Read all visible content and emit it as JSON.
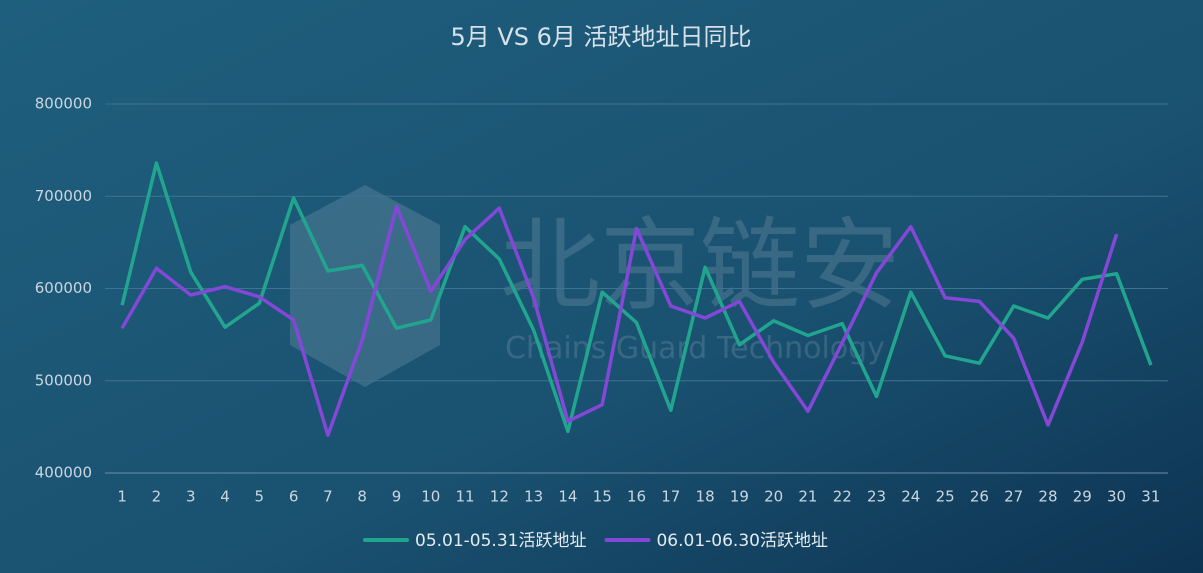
{
  "chart_data": {
    "type": "line",
    "title": "5月 VS 6月 活跃地址日同比",
    "watermark": {
      "text": "北京链安",
      "subtext": "Chains Guard Technology"
    },
    "categories": [
      1,
      2,
      3,
      4,
      5,
      6,
      7,
      8,
      9,
      10,
      11,
      12,
      13,
      14,
      15,
      16,
      17,
      18,
      19,
      20,
      21,
      22,
      23,
      24,
      25,
      26,
      27,
      28,
      29,
      30,
      31
    ],
    "series": [
      {
        "name": "05.01-05.31活跃地址",
        "color": "#22a58f",
        "values": [
          582000,
          736000,
          618000,
          558000,
          584000,
          698000,
          619000,
          625000,
          557000,
          566000,
          667000,
          632000,
          555000,
          445000,
          596000,
          563000,
          468000,
          623000,
          539000,
          565000,
          549000,
          562000,
          483000,
          596000,
          527000,
          519000,
          581000,
          568000,
          610000,
          616000,
          517000
        ]
      },
      {
        "name": "06.01-06.30活跃地址",
        "color": "#8447d8",
        "values": [
          557000,
          622000,
          593000,
          602000,
          591000,
          566000,
          441000,
          544000,
          689000,
          597000,
          653000,
          687000,
          590000,
          456000,
          474000,
          665000,
          581000,
          568000,
          586000,
          520000,
          467000,
          541000,
          617000,
          667000,
          590000,
          586000,
          546000,
          452000,
          542000,
          659000,
          null
        ]
      }
    ],
    "ylim": [
      400000,
      800000
    ],
    "yticks": [
      400000,
      500000,
      600000,
      700000,
      800000
    ],
    "grid": true,
    "legend": "bottom"
  }
}
